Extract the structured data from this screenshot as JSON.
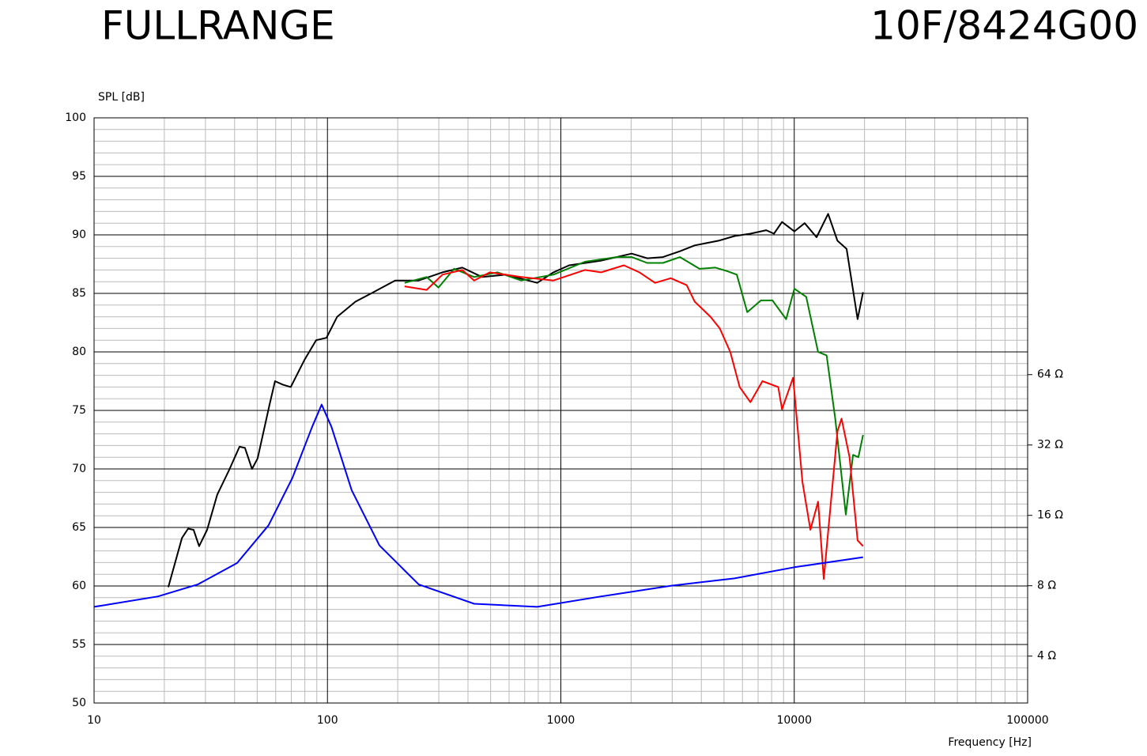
{
  "chart_data": {
    "type": "line",
    "title": "FULLRANGE",
    "subtitle": "10F/8424G00",
    "y_label": "SPL [dB]",
    "x_label": "Frequency [Hz]",
    "xscale": "log",
    "y2scale": "log",
    "grid": true,
    "xlim": [
      10,
      100000
    ],
    "xticks": [
      10,
      100,
      1000,
      10000,
      100000
    ],
    "ylim": [
      50,
      100
    ],
    "yticks": [
      50,
      55,
      60,
      65,
      70,
      75,
      80,
      85,
      90,
      95,
      100
    ],
    "y2lim": [
      2.52,
      803
    ],
    "y2ticks": [
      {
        "value": 4,
        "label": "4 Ω"
      },
      {
        "value": 8,
        "label": "8 Ω"
      },
      {
        "value": 16,
        "label": "16 Ω"
      },
      {
        "value": 32,
        "label": "32 Ω"
      },
      {
        "value": 64,
        "label": "64 Ω"
      }
    ],
    "series": [
      {
        "color": "#000000",
        "x": [
          20.8,
          23.8,
          25.3,
          26.7,
          28.2,
          30.5,
          33.7,
          37.9,
          42,
          44.3,
          47.5,
          50.2,
          56.5,
          59.6,
          64.4,
          69.6,
          79.6,
          89.4,
          99,
          110,
          132,
          154,
          195,
          246,
          311,
          378,
          460,
          581,
          792,
          929,
          1085,
          1487,
          2011,
          2346,
          2737,
          3238,
          3746,
          4739,
          5546,
          6487,
          7587,
          8189,
          8862,
          10015,
          11080,
          12460,
          13970,
          15310,
          16770,
          18680,
          19720
        ],
        "values": [
          59.9,
          64.1,
          64.9,
          64.8,
          63.4,
          64.8,
          67.8,
          69.9,
          71.9,
          71.8,
          70.0,
          70.9,
          75.5,
          77.5,
          77.2,
          77.0,
          79.3,
          81.0,
          81.2,
          83.0,
          84.3,
          85.0,
          86.1,
          86.1,
          86.8,
          87.2,
          86.4,
          86.6,
          85.9,
          86.8,
          87.4,
          87.8,
          88.4,
          88.0,
          88.1,
          88.6,
          89.1,
          89.5,
          89.9,
          90.1,
          90.4,
          90.1,
          91.1,
          90.3,
          91.0,
          89.8,
          91.8,
          89.5,
          88.8,
          82.8,
          85.1
        ]
      },
      {
        "color": "#008000",
        "x": [
          214,
          266,
          299,
          349,
          425,
          536,
          676,
          929,
          1268,
          1730,
          2011,
          2346,
          2737,
          3238,
          3928,
          4592,
          5169,
          5676,
          6288,
          7200,
          8067,
          9235,
          10015,
          11250,
          12650,
          13760,
          14980,
          16640,
          17860,
          18830,
          19720
        ],
        "values": [
          85.9,
          86.4,
          85.5,
          87.1,
          86.4,
          86.8,
          86.1,
          86.6,
          87.7,
          88.1,
          88.1,
          87.6,
          87.6,
          88.1,
          87.1,
          87.2,
          86.9,
          86.6,
          83.4,
          84.4,
          84.4,
          82.8,
          85.4,
          84.7,
          80.0,
          79.7,
          74.3,
          66.1,
          71.2,
          71.0,
          72.9
        ]
      },
      {
        "color": "#ff0000",
        "x": [
          214,
          266,
          311,
          378,
          425,
          496,
          676,
          929,
          1268,
          1487,
          1862,
          2171,
          2534,
          2960,
          3461,
          3746,
          4377,
          4799,
          5317,
          5835,
          6487,
          7308,
          8540,
          8862,
          9884,
          10840,
          11730,
          12650,
          13380,
          15310,
          15950,
          17250,
          18680,
          19720
        ],
        "values": [
          85.6,
          85.3,
          86.6,
          87.0,
          86.1,
          86.8,
          86.4,
          86.1,
          87.0,
          86.8,
          87.4,
          86.8,
          85.9,
          86.3,
          85.7,
          84.3,
          83.0,
          82.0,
          80.0,
          77.0,
          75.7,
          77.5,
          77.0,
          75.1,
          77.8,
          68.9,
          64.8,
          67.2,
          60.6,
          73.2,
          74.3,
          71.0,
          63.9,
          63.4
        ]
      },
      {
        "color": "#0000ff",
        "axis": "y2",
        "x": [
          10,
          18.8,
          27.8,
          41.0,
          55.9,
          70.7,
          86,
          94.4,
          104,
          127,
          167,
          246,
          425,
          792,
          1487,
          2960,
          5546,
          10015,
          19720
        ],
        "values": [
          6.5,
          7.2,
          8.1,
          10.0,
          14.5,
          23.1,
          38.3,
          47.6,
          38.3,
          20.5,
          11.9,
          8.1,
          6.7,
          6.5,
          7.2,
          8.0,
          8.6,
          9.6,
          10.6
        ]
      }
    ]
  }
}
